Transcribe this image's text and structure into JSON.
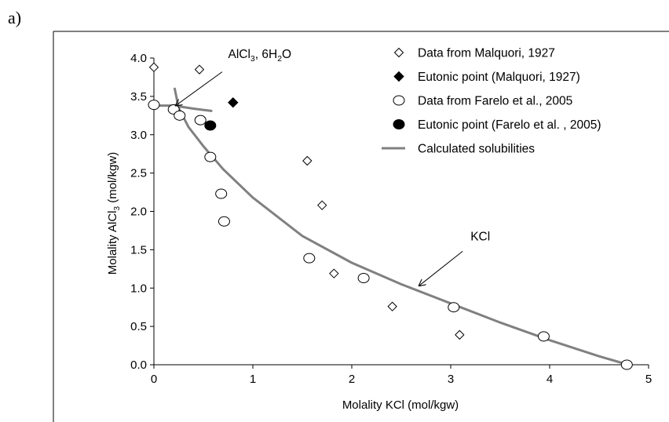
{
  "panel_label": "a)",
  "chart_data": {
    "type": "scatter",
    "title": "",
    "xlabel": "Molality KCl (mol/kgw)",
    "ylabel_parts": [
      "Molality AlCl",
      "3",
      " (mol/kgw)"
    ],
    "xlim": [
      0,
      5
    ],
    "ylim": [
      0,
      4
    ],
    "x_ticks": [
      0,
      1,
      2,
      3,
      4,
      5
    ],
    "x_tick_labels": [
      "0",
      "1",
      "2",
      "3",
      "4",
      "5"
    ],
    "y_ticks": [
      0,
      0.5,
      1,
      1.5,
      2,
      2.5,
      3,
      3.5,
      4
    ],
    "y_tick_labels": [
      "0.0",
      "0.5",
      "1.0",
      "1.5",
      "2.0",
      "2.5",
      "3.0",
      "3.5",
      "4.0"
    ],
    "grid": false,
    "legend_position": "top-right",
    "series": [
      {
        "name": "Data from Malquori, 1927",
        "marker": "diamond-open",
        "points": [
          [
            0.0,
            3.88
          ],
          [
            0.46,
            3.85
          ],
          [
            1.55,
            2.66
          ],
          [
            1.7,
            2.08
          ],
          [
            1.82,
            1.19
          ],
          [
            2.41,
            0.76
          ],
          [
            3.09,
            0.39
          ]
        ]
      },
      {
        "name": "Eutonic point (Malquori, 1927)",
        "marker": "diamond-filled",
        "points": [
          [
            0.8,
            3.42
          ]
        ]
      },
      {
        "name": "Data from Farelo et al., 2005",
        "marker": "circle-open",
        "points": [
          [
            0.0,
            3.39
          ],
          [
            0.2,
            3.33
          ],
          [
            0.26,
            3.25
          ],
          [
            0.47,
            3.19
          ],
          [
            0.57,
            2.71
          ],
          [
            0.68,
            2.23
          ],
          [
            0.71,
            1.87
          ],
          [
            1.57,
            1.39
          ],
          [
            2.12,
            1.13
          ],
          [
            3.03,
            0.75
          ],
          [
            3.94,
            0.37
          ],
          [
            4.78,
            0.0
          ]
        ]
      },
      {
        "name": "Eutonic point (Farelo et al. , 2005)",
        "marker": "circle-filled",
        "points": [
          [
            0.57,
            3.12
          ]
        ]
      },
      {
        "name": "Calculated solubilities",
        "marker": "line",
        "color": "#808080",
        "lines": [
          [
            [
              0.21,
              3.6
            ],
            [
              0.25,
              3.35
            ],
            [
              0.35,
              3.1
            ],
            [
              0.5,
              2.85
            ],
            [
              0.7,
              2.55
            ],
            [
              1.0,
              2.18
            ],
            [
              1.5,
              1.68
            ],
            [
              2.0,
              1.33
            ],
            [
              2.5,
              1.05
            ],
            [
              3.0,
              0.8
            ],
            [
              3.5,
              0.55
            ],
            [
              4.0,
              0.32
            ],
            [
              4.5,
              0.11
            ],
            [
              4.74,
              0.02
            ]
          ],
          [
            [
              0.0,
              3.38
            ],
            [
              0.2,
              3.38
            ],
            [
              0.4,
              3.34
            ],
            [
              0.58,
              3.31
            ]
          ]
        ]
      }
    ],
    "annotations": [
      {
        "label_parts": [
          "AlCl",
          "3",
          ", 6H",
          "2",
          "O"
        ],
        "text_at": [
          0.75,
          4.0
        ],
        "arrow_from": [
          0.69,
          3.82
        ],
        "arrow_to": [
          0.22,
          3.38
        ]
      },
      {
        "label_parts": [
          "KCl"
        ],
        "text_at": [
          3.2,
          1.62
        ],
        "arrow_from": [
          3.12,
          1.48
        ],
        "arrow_to": [
          2.68,
          1.03
        ]
      }
    ]
  }
}
